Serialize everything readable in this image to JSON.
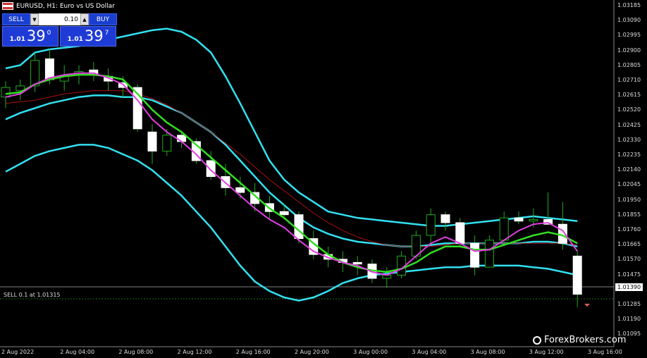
{
  "header": {
    "symbol_title": "EURUSD, H1:  Euro vs US Dollar"
  },
  "trade_panel": {
    "sell_label": "SELL",
    "buy_label": "BUY",
    "lot": "0.10",
    "sell_small": "1.01",
    "sell_big": "39",
    "sell_sup": "0",
    "buy_small": "1.01",
    "buy_big": "39",
    "buy_sup": "7",
    "step_down": "▼",
    "step_up": "▲"
  },
  "order": {
    "label": "SELL 0.1 at 1.01315"
  },
  "current_price": "1.01390",
  "y_ticks": [
    "1.03185",
    "1.03090",
    "1.02995",
    "1.02900",
    "1.02805",
    "1.02710",
    "1.02615",
    "1.02520",
    "1.02425",
    "1.02330",
    "1.02235",
    "1.02140",
    "1.02045",
    "1.01950",
    "1.01855",
    "1.01760",
    "1.01665",
    "1.01570",
    "1.01475",
    "1.01380",
    "1.01285",
    "1.01190",
    "1.01095"
  ],
  "x_ticks": [
    "2 Aug 2022",
    "2 Aug 04:00",
    "2 Aug 08:00",
    "2 Aug 12:00",
    "2 Aug 16:00",
    "2 Aug 20:00",
    "3 Aug 00:00",
    "3 Aug 04:00",
    "3 Aug 08:00",
    "3 Aug 12:00",
    "3 Aug 16:00"
  ],
  "brand": {
    "name": "ForexBrokers.com"
  },
  "colors": {
    "bollinger": "#33e0f0",
    "ma_fast": "#e040e0",
    "ma_slow": "#33dd22",
    "ma_long": "#aa1111",
    "candle_wick": "#22aa22"
  },
  "chart_data": {
    "type": "candlestick",
    "ylim": [
      1.0105,
      1.0323
    ],
    "candles": [
      [
        1.0262,
        1.0272,
        1.0255,
        1.0268
      ],
      [
        1.0266,
        1.0273,
        1.026,
        1.0269
      ],
      [
        1.0269,
        1.029,
        1.0265,
        1.0285
      ],
      [
        1.0286,
        1.0292,
        1.027,
        1.0273
      ],
      [
        1.0272,
        1.0282,
        1.0266,
        1.0275
      ],
      [
        1.0276,
        1.0282,
        1.027,
        1.0278
      ],
      [
        1.0279,
        1.0284,
        1.0272,
        1.0276
      ],
      [
        1.0275,
        1.028,
        1.0266,
        1.0272
      ],
      [
        1.0271,
        1.0275,
        1.0262,
        1.0268
      ],
      [
        1.0268,
        1.027,
        1.024,
        1.0242
      ],
      [
        1.024,
        1.0245,
        1.022,
        1.0228
      ],
      [
        1.0228,
        1.0242,
        1.0225,
        1.0238
      ],
      [
        1.0238,
        1.024,
        1.023,
        1.0234
      ],
      [
        1.0234,
        1.0236,
        1.022,
        1.0222
      ],
      [
        1.0222,
        1.0228,
        1.021,
        1.0212
      ],
      [
        1.0212,
        1.022,
        1.02,
        1.0205
      ],
      [
        1.0205,
        1.0212,
        1.0198,
        1.0202
      ],
      [
        1.0202,
        1.0208,
        1.019,
        1.0195
      ],
      [
        1.0195,
        1.02,
        1.0185,
        1.019
      ],
      [
        1.019,
        1.0195,
        1.0185,
        1.0188
      ],
      [
        1.0188,
        1.019,
        1.017,
        1.0173
      ],
      [
        1.0173,
        1.0178,
        1.016,
        1.0163
      ],
      [
        1.0163,
        1.0168,
        1.0155,
        1.016
      ],
      [
        1.016,
        1.0165,
        1.0152,
        1.0158
      ],
      [
        1.0158,
        1.0162,
        1.015,
        1.0157
      ],
      [
        1.0157,
        1.016,
        1.0145,
        1.0148
      ],
      [
        1.0148,
        1.0155,
        1.0142,
        1.015
      ],
      [
        1.015,
        1.0165,
        1.0148,
        1.0162
      ],
      [
        1.0162,
        1.0178,
        1.016,
        1.0175
      ],
      [
        1.0175,
        1.0192,
        1.017,
        1.0188
      ],
      [
        1.0188,
        1.019,
        1.0178,
        1.0183
      ],
      [
        1.0183,
        1.0186,
        1.0168,
        1.017
      ],
      [
        1.017,
        1.0175,
        1.015,
        1.0155
      ],
      [
        1.0155,
        1.0175,
        1.0155,
        1.0172
      ],
      [
        1.0172,
        1.019,
        1.017,
        1.0186
      ],
      [
        1.0186,
        1.019,
        1.0182,
        1.0184
      ],
      [
        1.0184,
        1.0192,
        1.018,
        1.0185
      ],
      [
        1.0185,
        1.0202,
        1.0182,
        1.0182
      ],
      [
        1.0182,
        1.0196,
        1.0166,
        1.017
      ],
      [
        1.0162,
        1.0165,
        1.013,
        1.0138
      ]
    ],
    "bb_upper": [
      1.028,
      1.0282,
      1.029,
      1.0292,
      1.0293,
      1.0294,
      1.0296,
      1.0298,
      1.03,
      1.0302,
      1.0304,
      1.0305,
      1.0303,
      1.0298,
      1.029,
      1.0275,
      1.0258,
      1.024,
      1.0222,
      1.021,
      1.0202,
      1.0196,
      1.019,
      1.0188,
      1.0186,
      1.0185,
      1.0184,
      1.0183,
      1.0182,
      1.0181,
      1.0181,
      1.0182,
      1.0183,
      1.0184,
      1.0185,
      1.0186,
      1.0187,
      1.0186,
      1.0185,
      1.0184
    ],
    "bb_middle": [
      1.0248,
      1.0252,
      1.0255,
      1.0258,
      1.026,
      1.0262,
      1.0263,
      1.0263,
      1.0262,
      1.0262,
      1.026,
      1.0256,
      1.0252,
      1.0246,
      1.024,
      1.0232,
      1.0222,
      1.0212,
      1.0202,
      1.0194,
      1.0186,
      1.018,
      1.0176,
      1.0173,
      1.0171,
      1.017,
      1.0169,
      1.0168,
      1.0168,
      1.0169,
      1.017,
      1.017,
      1.017,
      1.017,
      1.017,
      1.017,
      1.0171,
      1.0171,
      1.017,
      1.0168
    ],
    "bb_lower": [
      1.0215,
      1.022,
      1.0225,
      1.0228,
      1.023,
      1.0232,
      1.0232,
      1.023,
      1.0226,
      1.0222,
      1.0216,
      1.0208,
      1.02,
      1.019,
      1.018,
      1.0168,
      1.0156,
      1.0146,
      1.014,
      1.0136,
      1.0134,
      1.0136,
      1.014,
      1.0145,
      1.0148,
      1.015,
      1.0151,
      1.0152,
      1.0153,
      1.0154,
      1.0155,
      1.0155,
      1.0156,
      1.0156,
      1.0156,
      1.0156,
      1.0155,
      1.0154,
      1.0152,
      1.015
    ],
    "ma_fast": [
      1.0262,
      1.0264,
      1.027,
      1.0274,
      1.0276,
      1.0277,
      1.0277,
      1.0274,
      1.027,
      1.026,
      1.0248,
      1.024,
      1.0234,
      1.0226,
      1.0216,
      1.0208,
      1.02,
      1.0192,
      1.0185,
      1.018,
      1.0172,
      1.0165,
      1.0161,
      1.0158,
      1.0156,
      1.0152,
      1.015,
      1.0154,
      1.0162,
      1.017,
      1.0174,
      1.017,
      1.0165,
      1.0166,
      1.0172,
      1.0178,
      1.0182,
      1.0183,
      1.0178,
      1.0165
    ],
    "ma_slow": [
      1.0264,
      1.0265,
      1.027,
      1.0273,
      1.0275,
      1.0276,
      1.0276,
      1.0275,
      1.0273,
      1.0264,
      1.0254,
      1.0246,
      1.024,
      1.0232,
      1.0224,
      1.0216,
      1.0208,
      1.02,
      1.0192,
      1.0186,
      1.0178,
      1.017,
      1.0163,
      1.0158,
      1.0155,
      1.0153,
      1.0152,
      1.0154,
      1.0158,
      1.0164,
      1.0168,
      1.0168,
      1.0166,
      1.0166,
      1.0169,
      1.0172,
      1.0175,
      1.0177,
      1.0175,
      1.017
    ],
    "ma_long": [
      1.0258,
      1.0259,
      1.026,
      1.0262,
      1.0264,
      1.0265,
      1.0266,
      1.0266,
      1.0266,
      1.0264,
      1.0261,
      1.0257,
      1.0252,
      1.0246,
      1.024,
      1.0233,
      1.0226,
      1.0218,
      1.021,
      1.0203,
      1.0196,
      1.0189,
      1.0183,
      1.0178,
      1.0174,
      1.0171,
      1.0169,
      1.0168,
      1.0168,
      1.0168,
      1.0169,
      1.017,
      1.017,
      1.017,
      1.017,
      1.017,
      1.017,
      1.017,
      1.017,
      1.0169
    ]
  }
}
